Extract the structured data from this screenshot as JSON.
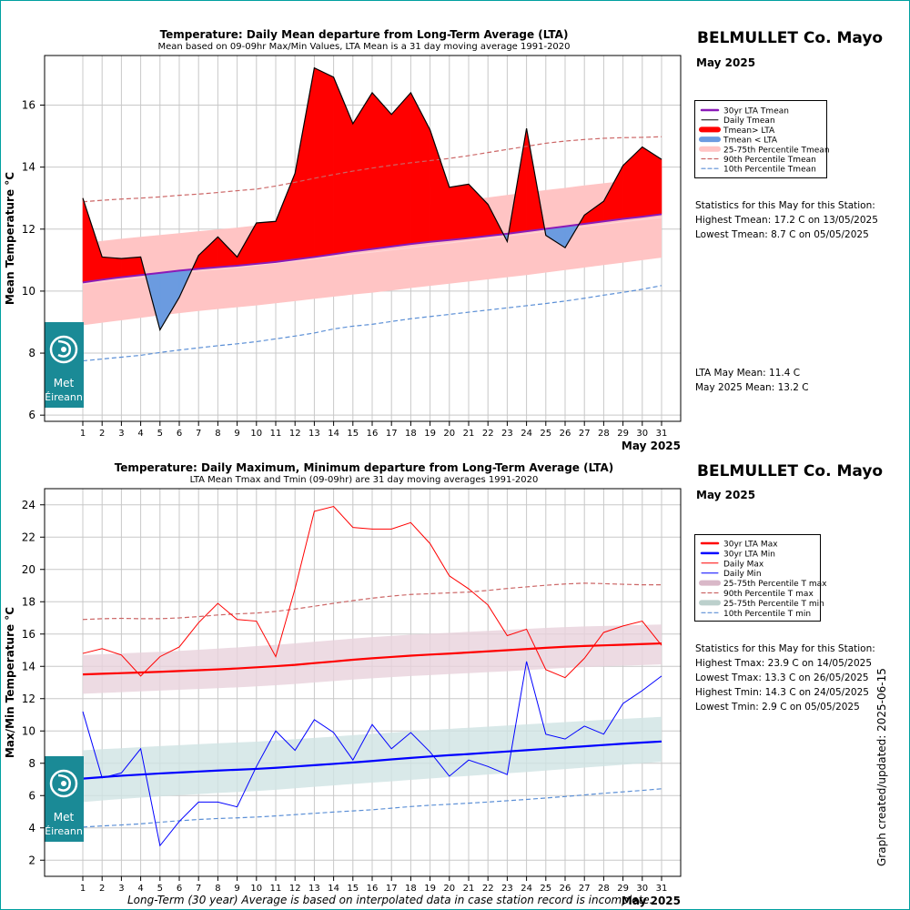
{
  "chart_data": [
    {
      "type": "line",
      "title": "Temperature: Daily Mean departure from Long-Term Average (LTA)",
      "subtitle": "Mean based on 09-09hr Max/Min Values, LTA Mean is a 31 day moving average 1991-2020",
      "ylabel": "Mean Temperature °C",
      "xlabel": "May 2025",
      "ylim": [
        5.8,
        17.6
      ],
      "yticks": [
        6,
        8,
        10,
        12,
        14,
        16
      ],
      "x": [
        1,
        2,
        3,
        4,
        5,
        6,
        7,
        8,
        9,
        10,
        11,
        12,
        13,
        14,
        15,
        16,
        17,
        18,
        19,
        20,
        21,
        22,
        23,
        24,
        25,
        26,
        27,
        28,
        29,
        30,
        31
      ],
      "grid": true,
      "legend_position": "right",
      "legend": [
        "30yr LTA Tmean",
        "Daily Tmean",
        "Tmean> LTA",
        "Tmean < LTA",
        "25-75th Percentile Tmean",
        "90th Percentile Tmean",
        "10th Percentile Tmean"
      ],
      "series": [
        {
          "name": "Daily Tmean",
          "values": [
            13.0,
            11.1,
            11.05,
            11.1,
            8.75,
            9.8,
            11.15,
            11.75,
            11.1,
            12.2,
            12.25,
            13.8,
            17.2,
            16.9,
            15.4,
            16.4,
            15.7,
            16.4,
            15.2,
            13.35,
            13.45,
            12.8,
            11.6,
            15.25,
            11.8,
            11.4,
            12.45,
            12.9,
            14.05,
            14.65,
            14.25
          ]
        },
        {
          "name": "30yr LTA Tmean",
          "values": [
            10.28,
            10.37,
            10.45,
            10.52,
            10.59,
            10.66,
            10.72,
            10.77,
            10.82,
            10.88,
            10.94,
            11.02,
            11.1,
            11.19,
            11.28,
            11.36,
            11.44,
            11.52,
            11.59,
            11.65,
            11.71,
            11.78,
            11.85,
            11.93,
            12.01,
            12.09,
            12.17,
            12.25,
            12.33,
            12.4,
            12.48
          ]
        },
        {
          "name": "25-75th Percentile Tmean low",
          "values": [
            8.9,
            8.98,
            9.06,
            9.14,
            9.22,
            9.29,
            9.36,
            9.42,
            9.48,
            9.54,
            9.61,
            9.68,
            9.75,
            9.82,
            9.89,
            9.95,
            10.02,
            10.1,
            10.17,
            10.24,
            10.31,
            10.38,
            10.45,
            10.52,
            10.6,
            10.68,
            10.76,
            10.84,
            10.92,
            11.0,
            11.08
          ]
        },
        {
          "name": "25-75th Percentile Tmean high",
          "values": [
            11.55,
            11.62,
            11.69,
            11.75,
            11.81,
            11.87,
            11.93,
            11.99,
            12.05,
            12.12,
            12.19,
            12.26,
            12.33,
            12.41,
            12.49,
            12.56,
            12.63,
            12.7,
            12.78,
            12.86,
            12.94,
            13.02,
            13.1,
            13.18,
            13.26,
            13.33,
            13.41,
            13.48,
            13.55,
            13.61,
            13.67
          ]
        },
        {
          "name": "90th Percentile Tmean",
          "values": [
            12.88,
            12.93,
            12.97,
            13.0,
            13.04,
            13.09,
            13.13,
            13.18,
            13.24,
            13.29,
            13.39,
            13.51,
            13.64,
            13.76,
            13.87,
            13.97,
            14.06,
            14.14,
            14.21,
            14.28,
            14.37,
            14.47,
            14.57,
            14.67,
            14.77,
            14.84,
            14.89,
            14.93,
            14.95,
            14.96,
            14.98
          ]
        },
        {
          "name": "10th Percentile Tmean",
          "values": [
            7.75,
            7.81,
            7.87,
            7.93,
            8.02,
            8.1,
            8.17,
            8.24,
            8.3,
            8.37,
            8.46,
            8.55,
            8.65,
            8.78,
            8.87,
            8.93,
            9.02,
            9.11,
            9.18,
            9.25,
            9.32,
            9.39,
            9.46,
            9.53,
            9.6,
            9.68,
            9.77,
            9.87,
            9.96,
            10.06,
            10.18
          ]
        }
      ],
      "colors": {
        "lta": "#8a1ab8",
        "daily": "#000000",
        "above": "#ff0000",
        "below": "#6b9be0",
        "band": "#ffc4c4",
        "p90": "#cc6666",
        "p10": "#5b8fd6",
        "median_line": "#ffd8d8"
      }
    },
    {
      "type": "line",
      "title": "Temperature: Daily Maximum, Minimum departure from Long-Term Average (LTA)",
      "subtitle": "LTA Mean Tmax and Tmin (09-09hr) are 31 day moving averages 1991-2020",
      "ylabel": "Max/Min Temperature °C",
      "xlabel": "May 2025",
      "ylim": [
        1.0,
        25.0
      ],
      "yticks": [
        2,
        4,
        6,
        8,
        10,
        12,
        14,
        16,
        18,
        20,
        22,
        24
      ],
      "x": [
        1,
        2,
        3,
        4,
        5,
        6,
        7,
        8,
        9,
        10,
        11,
        12,
        13,
        14,
        15,
        16,
        17,
        18,
        19,
        20,
        21,
        22,
        23,
        24,
        25,
        26,
        27,
        28,
        29,
        30,
        31
      ],
      "grid": true,
      "legend_position": "right",
      "legend": [
        "30yr LTA Max",
        "30yr LTA Min",
        "Daily Max",
        "Daily Min",
        "25-75th Percentile T max",
        "90th Percentile T max",
        "25-75th Percentile T min",
        "10th Percentile T min"
      ],
      "series": [
        {
          "name": "Daily Max",
          "values": [
            14.8,
            15.1,
            14.7,
            13.4,
            14.6,
            15.2,
            16.7,
            17.9,
            16.9,
            16.8,
            14.6,
            18.8,
            23.6,
            23.9,
            22.6,
            22.5,
            22.5,
            22.9,
            21.6,
            19.6,
            18.8,
            17.8,
            15.9,
            16.3,
            13.8,
            13.3,
            14.5,
            16.1,
            16.5,
            16.8,
            15.3
          ]
        },
        {
          "name": "Daily Min",
          "values": [
            11.2,
            7.1,
            7.4,
            8.9,
            2.9,
            4.4,
            5.6,
            5.6,
            5.3,
            7.8,
            10.0,
            8.8,
            10.7,
            9.9,
            8.2,
            10.4,
            8.9,
            9.9,
            8.7,
            7.2,
            8.2,
            7.8,
            7.3,
            14.3,
            9.8,
            9.5,
            10.3,
            9.8,
            11.7,
            12.5,
            13.4
          ]
        },
        {
          "name": "30yr LTA Max",
          "values": [
            13.5,
            13.54,
            13.58,
            13.62,
            13.66,
            13.71,
            13.76,
            13.81,
            13.87,
            13.94,
            14.01,
            14.09,
            14.2,
            14.3,
            14.41,
            14.5,
            14.58,
            14.66,
            14.73,
            14.79,
            14.86,
            14.93,
            15.0,
            15.07,
            15.15,
            15.21,
            15.26,
            15.3,
            15.34,
            15.38,
            15.42
          ]
        },
        {
          "name": "30yr LTA Min",
          "values": [
            7.05,
            7.14,
            7.23,
            7.3,
            7.37,
            7.43,
            7.49,
            7.55,
            7.6,
            7.65,
            7.72,
            7.8,
            7.88,
            7.96,
            8.05,
            8.14,
            8.24,
            8.33,
            8.42,
            8.5,
            8.57,
            8.65,
            8.73,
            8.81,
            8.89,
            8.97,
            9.05,
            9.13,
            9.21,
            9.28,
            9.35
          ]
        },
        {
          "name": "25-75th Percentile T max low",
          "values": [
            12.3,
            12.35,
            12.4,
            12.45,
            12.5,
            12.55,
            12.6,
            12.65,
            12.7,
            12.76,
            12.83,
            12.91,
            13.0,
            13.09,
            13.18,
            13.26,
            13.33,
            13.4,
            13.46,
            13.52,
            13.58,
            13.64,
            13.7,
            13.77,
            13.84,
            13.9,
            13.95,
            14.0,
            14.04,
            14.08,
            14.12
          ]
        },
        {
          "name": "25-75th Percentile T max high",
          "values": [
            14.7,
            14.75,
            14.8,
            14.85,
            14.9,
            14.96,
            15.03,
            15.1,
            15.17,
            15.25,
            15.33,
            15.42,
            15.52,
            15.62,
            15.72,
            15.81,
            15.89,
            15.96,
            16.02,
            16.08,
            16.14,
            16.2,
            16.26,
            16.32,
            16.38,
            16.43,
            16.47,
            16.5,
            16.53,
            16.56,
            16.59
          ]
        },
        {
          "name": "25-75th Percentile T min low",
          "values": [
            5.6,
            5.7,
            5.79,
            5.87,
            5.95,
            6.02,
            6.09,
            6.16,
            6.22,
            6.28,
            6.36,
            6.45,
            6.54,
            6.63,
            6.72,
            6.8,
            6.88,
            6.97,
            7.06,
            7.14,
            7.22,
            7.3,
            7.38,
            7.46,
            7.55,
            7.64,
            7.73,
            7.82,
            7.91,
            8.0,
            8.09
          ]
        },
        {
          "name": "25-75th Percentile T min high",
          "values": [
            8.8,
            8.87,
            8.93,
            9.0,
            9.06,
            9.12,
            9.18,
            9.24,
            9.29,
            9.34,
            9.41,
            9.49,
            9.57,
            9.65,
            9.74,
            9.82,
            9.9,
            9.98,
            10.06,
            10.13,
            10.2,
            10.27,
            10.34,
            10.41,
            10.48,
            10.55,
            10.62,
            10.69,
            10.75,
            10.81,
            10.87
          ]
        },
        {
          "name": "90th Percentile T max",
          "values": [
            16.9,
            16.95,
            16.97,
            16.95,
            16.95,
            17.0,
            17.08,
            17.18,
            17.25,
            17.3,
            17.4,
            17.55,
            17.72,
            17.9,
            18.07,
            18.22,
            18.35,
            18.45,
            18.5,
            18.55,
            18.6,
            18.7,
            18.82,
            18.92,
            19.02,
            19.1,
            19.15,
            19.12,
            19.08,
            19.05,
            19.05
          ]
        },
        {
          "name": "10th Percentile T min",
          "values": [
            4.05,
            4.12,
            4.18,
            4.25,
            4.35,
            4.44,
            4.52,
            4.58,
            4.62,
            4.67,
            4.74,
            4.82,
            4.9,
            4.98,
            5.05,
            5.12,
            5.22,
            5.32,
            5.4,
            5.46,
            5.53,
            5.6,
            5.68,
            5.76,
            5.85,
            5.94,
            6.04,
            6.14,
            6.23,
            6.32,
            6.42
          ]
        }
      ],
      "colors": {
        "lta_max": "#ff0000",
        "lta_min": "#0000ff",
        "daily_max": "#ff0000",
        "daily_min": "#0000ff",
        "band_max": "#e8d2dc",
        "band_min": "#cfe3e3",
        "p90": "#cc6666",
        "p10": "#5b8fd6"
      }
    }
  ],
  "panel1": {
    "station": "BELMULLET Co. Mayo",
    "month": "May 2025",
    "stats_header": "Statistics for this May for this Station:",
    "stats": [
      "Highest Tmean: 17.2 C on 13/05/2025",
      "Lowest Tmean: 8.7 C on 05/05/2025"
    ],
    "means": [
      "LTA May Mean: 11.4 C",
      "May 2025 Mean: 13.2 C"
    ]
  },
  "panel2": {
    "station": "BELMULLET Co. Mayo",
    "month": "May 2025",
    "stats_header": "Statistics for this May for this Station:",
    "stats": [
      "Highest Tmax: 23.9 C on 14/05/2025",
      "Lowest Tmax: 13.3 C on 26/05/2025",
      "Highest Tmin: 14.3 C on 24/05/2025",
      "Lowest Tmin: 2.9 C on 05/05/2025"
    ]
  },
  "logo": {
    "line1": "Met",
    "line2": "Éireann"
  },
  "footer": "Long-Term (30 year) Average is based on interpolated data in case station record is incomplete.",
  "updated": "Graph created/updated:  2025-06-15"
}
